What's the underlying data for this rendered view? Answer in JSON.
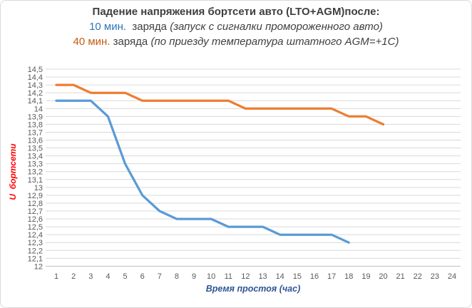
{
  "header": {
    "line1": "Падение напряжения бортсети авто (LTO+AGM)после:",
    "line2": {
      "lead": "10 мин.",
      "mid": "  заряда ",
      "paren": "(запуск с сигналки промороженного авто)"
    },
    "line3": {
      "lead": "40 мин.",
      "mid": " заряда ",
      "paren": "(по приезду температура штатного AGM=+1C)"
    }
  },
  "colors": {
    "title_text": "#3F3F3F",
    "subtitle_10min": "#2E75B6",
    "subtitle_40min": "#C55A11",
    "axis_tick_text": "#595959",
    "x_axis_title": "#2F5597",
    "y_axis_title": "#FF0000",
    "gridline": "#D9D9D9",
    "axis_line": "#BFBFBF",
    "series_10min": "#5B9BD5",
    "series_40min": "#ED7D31"
  },
  "chart_data": {
    "type": "line",
    "title": "Падение напряжения бортсети авто (LTO+AGM)после:",
    "xlabel": "Время простоя (час)",
    "ylabel": "U  бортсети",
    "xlim": [
      1,
      24
    ],
    "ylim": [
      12,
      14.5
    ],
    "y_step": 0.1,
    "grid": true,
    "legend": "none",
    "x_ticks": [
      "1",
      "2",
      "3",
      "4",
      "5",
      "6",
      "7",
      "8",
      "9",
      "10",
      "11",
      "12",
      "13",
      "14",
      "15",
      "16",
      "17",
      "18",
      "19",
      "20",
      "21",
      "22",
      "23",
      "24"
    ],
    "y_ticks": [
      {
        "value": 14.5,
        "label": "14,5"
      },
      {
        "value": 14.4,
        "label": "14,4"
      },
      {
        "value": 14.3,
        "label": "14,3"
      },
      {
        "value": 14.2,
        "label": "14,2"
      },
      {
        "value": 14.1,
        "label": "14,1"
      },
      {
        "value": 14.0,
        "label": "14"
      },
      {
        "value": 13.9,
        "label": "13,9"
      },
      {
        "value": 13.8,
        "label": "13,8"
      },
      {
        "value": 13.7,
        "label": "13,7"
      },
      {
        "value": 13.6,
        "label": "13,6"
      },
      {
        "value": 13.5,
        "label": "13,5"
      },
      {
        "value": 13.4,
        "label": "13,4"
      },
      {
        "value": 13.3,
        "label": "13,3"
      },
      {
        "value": 13.2,
        "label": "13,2"
      },
      {
        "value": 13.1,
        "label": "13,1"
      },
      {
        "value": 13.0,
        "label": "13"
      },
      {
        "value": 12.9,
        "label": "12,9"
      },
      {
        "value": 12.8,
        "label": "12,8"
      },
      {
        "value": 12.7,
        "label": "12,7"
      },
      {
        "value": 12.6,
        "label": "12,6"
      },
      {
        "value": 12.5,
        "label": "12,5"
      },
      {
        "value": 12.4,
        "label": "12,4"
      },
      {
        "value": 12.3,
        "label": "12,3"
      },
      {
        "value": 12.2,
        "label": "12,2"
      },
      {
        "value": 12.1,
        "label": "12,1"
      },
      {
        "value": 12.0,
        "label": "12"
      }
    ],
    "series": [
      {
        "name": "10 мин. заряда",
        "key": "10min",
        "color": "#5B9BD5",
        "start_hour": 1,
        "values": [
          14.1,
          14.1,
          14.1,
          13.9,
          13.3,
          12.9,
          12.7,
          12.6,
          12.6,
          12.6,
          12.5,
          12.5,
          12.5,
          12.4,
          12.4,
          12.4,
          12.4,
          12.3
        ]
      },
      {
        "name": "40 мин. заряда",
        "key": "40min",
        "color": "#ED7D31",
        "start_hour": 1,
        "values": [
          14.3,
          14.3,
          14.2,
          14.2,
          14.2,
          14.1,
          14.1,
          14.1,
          14.1,
          14.1,
          14.1,
          14.0,
          14.0,
          14.0,
          14.0,
          14.0,
          14.0,
          13.9,
          13.9,
          13.8
        ]
      }
    ]
  }
}
